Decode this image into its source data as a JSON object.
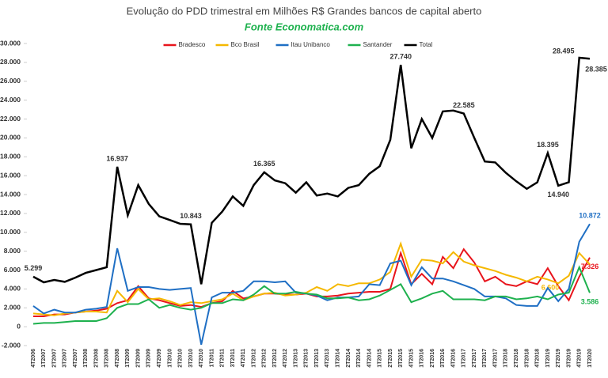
{
  "chart_data": {
    "type": "line",
    "title": "Evolução do PDD trimestral em Milhões R$ Grandes bancos de capital aberto",
    "subtitle": "Fonte Economatica.com",
    "categories": [
      "4T2006",
      "1T2007",
      "2T2007",
      "3T2007",
      "4T2007",
      "1T2008",
      "2T2008",
      "3T2008",
      "4T2008",
      "1T2009",
      "2T2009",
      "3T2009",
      "4T2009",
      "1T2010",
      "2T2010",
      "3T2010",
      "4T2010",
      "1T2011",
      "2T2011",
      "3T2011",
      "4T2011",
      "1T2012",
      "2T2012",
      "3T2012",
      "4T2012",
      "1T2013",
      "2T2013",
      "3T2013",
      "4T2013",
      "1T2014",
      "2T2014",
      "3T2014",
      "4T2014",
      "1T2015",
      "2T2015",
      "3T2015",
      "4T2015",
      "1T2016",
      "2T2016",
      "3T2016",
      "4T2016",
      "1T2017",
      "2T2017",
      "3T2017",
      "4T2017",
      "1T2018",
      "2T2018",
      "3T2018",
      "4T2018",
      "1T2019",
      "2T2019",
      "3T2019",
      "4T2019",
      "1T2020"
    ],
    "series": [
      {
        "name": "Bradesco",
        "color": "#e8141c",
        "values": [
          1100,
          1100,
          1300,
          1300,
          1500,
          1600,
          1700,
          1900,
          2500,
          2800,
          4300,
          3000,
          2800,
          2500,
          2200,
          2300,
          2100,
          2500,
          2700,
          3800,
          3000,
          3200,
          3500,
          3500,
          3400,
          3400,
          3500,
          3200,
          3200,
          3300,
          3500,
          3600,
          3700,
          3700,
          4000,
          7800,
          4500,
          5600,
          4500,
          7400,
          6200,
          8200,
          6800,
          4800,
          5300,
          4500,
          4300,
          4800,
          4500,
          6200,
          4300,
          2800,
          5300,
          7326
        ],
        "value_labels": [
          null,
          null,
          null,
          null,
          null,
          null,
          null,
          null,
          null,
          null,
          null,
          null,
          null,
          null,
          null,
          null,
          null,
          null,
          null,
          null,
          null,
          null,
          null,
          null,
          null,
          null,
          null,
          null,
          null,
          null,
          null,
          null,
          null,
          null,
          null,
          null,
          null,
          null,
          null,
          null,
          null,
          null,
          null,
          null,
          null,
          null,
          null,
          null,
          null,
          null,
          null,
          null,
          null,
          "7.326"
        ]
      },
      {
        "name": "Bco Brasil",
        "color": "#f5b800",
        "values": [
          1400,
          1300,
          1200,
          1400,
          1500,
          1600,
          1600,
          1500,
          3800,
          2600,
          4000,
          2900,
          3000,
          2700,
          2300,
          2600,
          2500,
          2700,
          2900,
          3500,
          2800,
          3200,
          3500,
          3600,
          3300,
          3400,
          3600,
          4200,
          3800,
          4500,
          4300,
          4600,
          4600,
          5000,
          5800,
          8800,
          5300,
          7100,
          7000,
          6700,
          7900,
          6900,
          6500,
          6200,
          5900,
          5500,
          5200,
          4800,
          5300,
          5000,
          4600,
          5400,
          7800,
          6600
        ],
        "value_labels": [
          null,
          null,
          null,
          null,
          null,
          null,
          null,
          null,
          null,
          null,
          null,
          null,
          null,
          null,
          null,
          null,
          null,
          null,
          null,
          null,
          null,
          null,
          null,
          null,
          null,
          null,
          null,
          null,
          null,
          null,
          null,
          null,
          null,
          null,
          null,
          null,
          null,
          null,
          null,
          null,
          null,
          null,
          null,
          null,
          null,
          null,
          null,
          null,
          null,
          null,
          null,
          null,
          null,
          "6.600"
        ]
      },
      {
        "name": "Itau Unibanco",
        "color": "#1f6fc4",
        "values": [
          2200,
          1400,
          1800,
          1500,
          1500,
          1800,
          1900,
          2100,
          8300,
          3800,
          4200,
          4200,
          4000,
          3900,
          4000,
          4100,
          -1900,
          3100,
          3600,
          3600,
          3800,
          4800,
          4800,
          4700,
          4800,
          3600,
          3500,
          3300,
          2800,
          3100,
          3100,
          3200,
          4500,
          4400,
          6700,
          7000,
          4400,
          6300,
          5100,
          5100,
          4800,
          4400,
          4000,
          3200,
          3200,
          3000,
          2300,
          2200,
          2200,
          4100,
          2700,
          4000,
          9000,
          10872
        ],
        "value_labels": [
          null,
          null,
          null,
          null,
          null,
          null,
          null,
          null,
          null,
          null,
          null,
          null,
          null,
          null,
          null,
          null,
          null,
          null,
          null,
          null,
          null,
          null,
          null,
          null,
          null,
          null,
          null,
          null,
          null,
          null,
          null,
          null,
          null,
          null,
          null,
          null,
          null,
          null,
          null,
          null,
          null,
          null,
          null,
          null,
          null,
          null,
          null,
          null,
          null,
          null,
          null,
          null,
          null,
          "10.872"
        ]
      },
      {
        "name": "Santander",
        "color": "#1eb14e",
        "values": [
          300,
          400,
          400,
          500,
          600,
          600,
          600,
          900,
          2000,
          2400,
          2400,
          2900,
          2000,
          2300,
          2000,
          1800,
          2000,
          2500,
          2500,
          2900,
          2800,
          3400,
          4300,
          3500,
          3500,
          3700,
          3500,
          3400,
          3000,
          3000,
          3100,
          2800,
          2900,
          3300,
          3900,
          4500,
          2600,
          3000,
          3500,
          3800,
          2900,
          2900,
          2900,
          2800,
          3200,
          3200,
          2900,
          3000,
          3200,
          2900,
          3400,
          3600,
          6300,
          3586
        ],
        "value_labels": [
          null,
          null,
          null,
          null,
          null,
          null,
          null,
          null,
          null,
          null,
          null,
          null,
          null,
          null,
          null,
          null,
          null,
          null,
          null,
          null,
          null,
          null,
          null,
          null,
          null,
          null,
          null,
          null,
          null,
          null,
          null,
          null,
          null,
          null,
          null,
          null,
          null,
          null,
          null,
          null,
          null,
          null,
          null,
          null,
          null,
          null,
          null,
          null,
          null,
          null,
          null,
          null,
          null,
          "3.586"
        ]
      },
      {
        "name": "Total",
        "color": "#000000",
        "values": [
          5299,
          4700,
          4950,
          4750,
          5200,
          5700,
          6000,
          6300,
          16937,
          11800,
          15000,
          13000,
          11700,
          11300,
          10900,
          10843,
          4500,
          11000,
          12200,
          13800,
          12800,
          15000,
          16365,
          15500,
          15200,
          14200,
          15300,
          13900,
          14100,
          13800,
          14700,
          15000,
          16200,
          17000,
          19800,
          27740,
          18900,
          22000,
          20000,
          22800,
          22900,
          22585,
          20000,
          17500,
          17400,
          16300,
          15400,
          14600,
          15300,
          18395,
          14940,
          15300,
          28495,
          28385
        ],
        "value_labels": [
          "5.299",
          null,
          null,
          null,
          null,
          null,
          null,
          null,
          "16.937",
          null,
          null,
          null,
          null,
          null,
          null,
          "10.843",
          null,
          null,
          null,
          null,
          null,
          null,
          "16.365",
          null,
          null,
          null,
          null,
          null,
          null,
          null,
          null,
          null,
          null,
          null,
          null,
          "27.740",
          null,
          null,
          null,
          null,
          null,
          "22.585",
          null,
          null,
          null,
          null,
          null,
          null,
          null,
          "18.395",
          "14.940",
          null,
          "28.495",
          "28.385"
        ]
      }
    ],
    "ylim": [
      -2000,
      30000
    ],
    "yticks": [
      {
        "value": -2000,
        "label": "-2.000"
      },
      0,
      {
        "value": 2000,
        "label": "2.000"
      },
      {
        "value": 4000,
        "label": "4.000"
      },
      {
        "value": 6000,
        "label": "6.000"
      },
      {
        "value": 8000,
        "label": "8.000"
      },
      {
        "value": 10000,
        "label": "10.000"
      },
      {
        "value": 12000,
        "label": "12.000"
      },
      {
        "value": 14000,
        "label": "14.000"
      },
      {
        "value": 16000,
        "label": "16.000"
      },
      {
        "value": 18000,
        "label": "18.000"
      },
      {
        "value": 20000,
        "label": "20.000"
      },
      {
        "value": 22000,
        "label": "22.000"
      },
      {
        "value": 24000,
        "label": "24.000"
      },
      {
        "value": 26000,
        "label": "26.000"
      },
      {
        "value": 28000,
        "label": "28.000"
      },
      {
        "value": 30000,
        "label": "30.000"
      }
    ],
    "legend": "top"
  }
}
